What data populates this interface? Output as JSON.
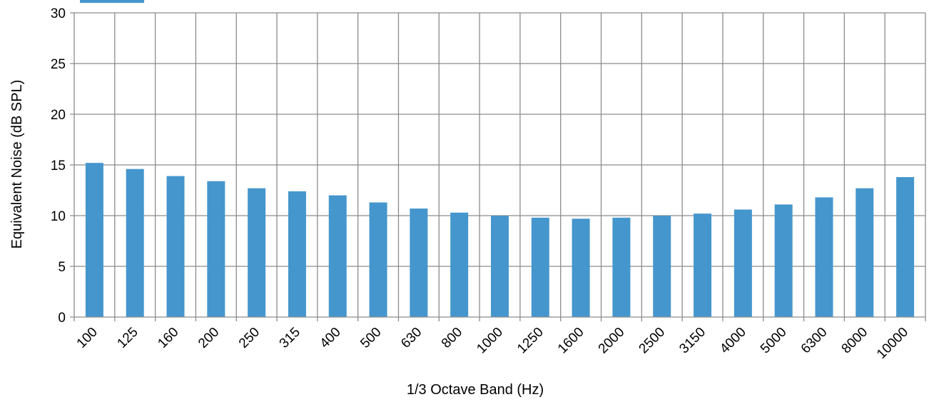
{
  "chart_data": {
    "type": "bar",
    "xlabel": "1/3 Octave Band (Hz)",
    "ylabel": "Equivalent Noise (dB SPL)",
    "ylim": [
      0,
      30
    ],
    "yticks": [
      "0",
      "5",
      "10",
      "15",
      "20",
      "25",
      "30"
    ],
    "categories": [
      "100",
      "125",
      "160",
      "200",
      "250",
      "315",
      "400",
      "500",
      "630",
      "800",
      "1000",
      "1250",
      "1600",
      "2000",
      "2500",
      "3150",
      "4000",
      "5000",
      "6300",
      "8000",
      "10000"
    ],
    "values": [
      15.2,
      14.6,
      13.9,
      13.4,
      12.7,
      12.4,
      12.0,
      11.3,
      10.7,
      10.3,
      10.0,
      9.8,
      9.7,
      9.8,
      10.0,
      10.2,
      10.6,
      11.1,
      11.8,
      12.7,
      13.8
    ],
    "grid": true,
    "legend": "none",
    "bar_color": "#4596cd"
  }
}
